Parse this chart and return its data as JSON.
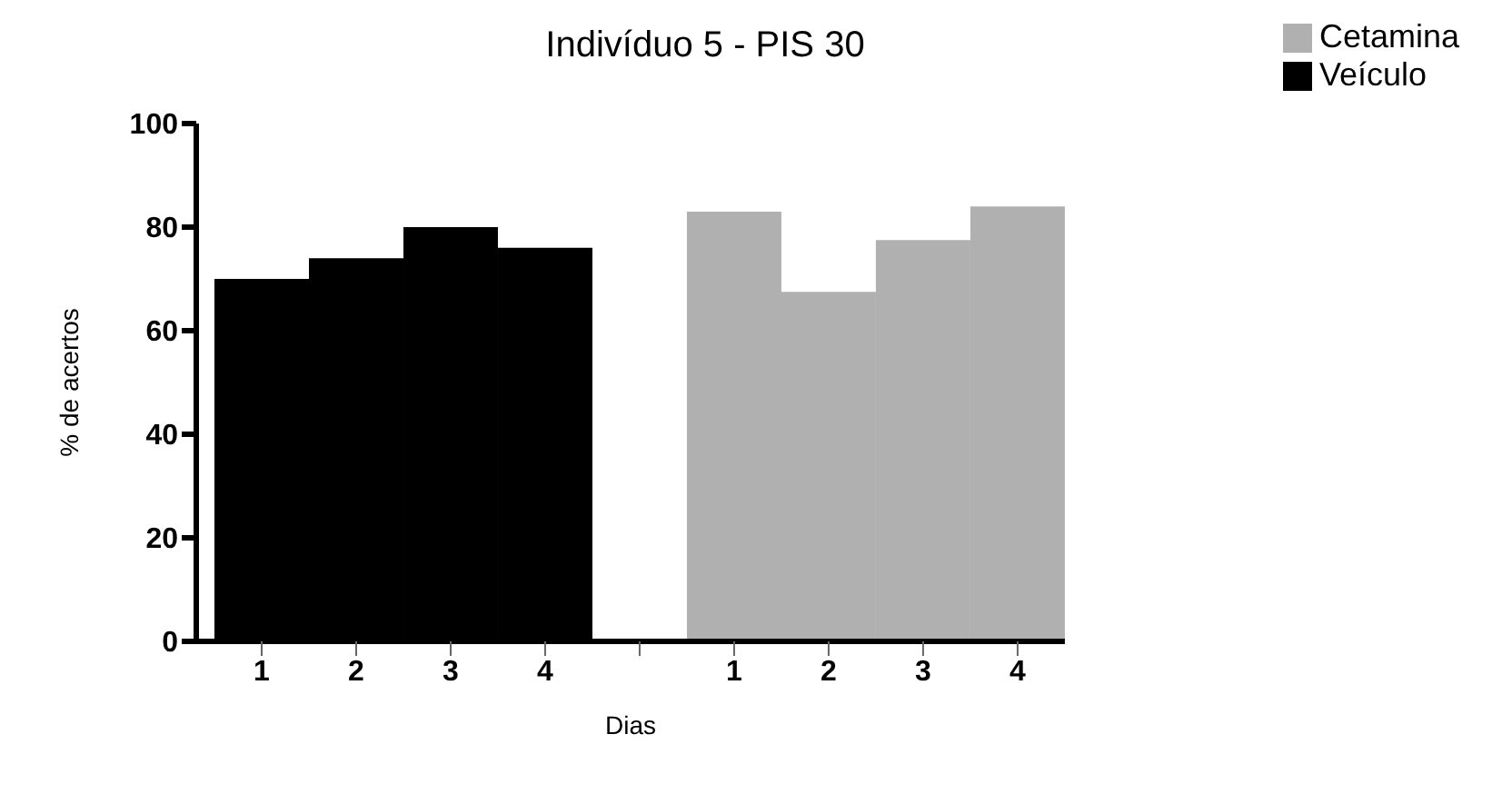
{
  "chart_data": {
    "type": "bar",
    "title": "Indivíduo 5 - PIS 30",
    "xlabel": "Dias",
    "ylabel": "% de acertos",
    "categories": [
      "1",
      "2",
      "3",
      "4",
      null,
      "1",
      "2",
      "3",
      "4"
    ],
    "series": [
      {
        "name": "Veículo",
        "color": "#000000",
        "values": [
          70,
          74,
          80,
          76,
          null,
          null,
          null,
          null,
          null
        ]
      },
      {
        "name": "Cetamina",
        "color": "#b0b0b1",
        "values": [
          null,
          null,
          null,
          null,
          null,
          83,
          67.5,
          77.5,
          84
        ]
      }
    ],
    "ylim": [
      0,
      100
    ],
    "yticks": [
      0,
      20,
      40,
      60,
      80,
      100
    ],
    "grid": false,
    "legend": "top right"
  }
}
